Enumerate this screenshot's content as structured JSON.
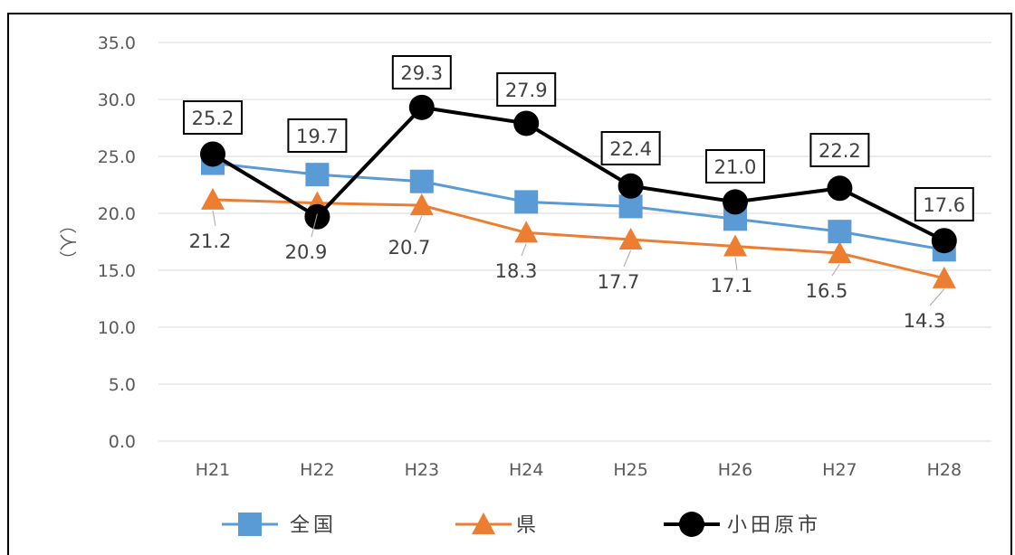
{
  "chart_data": {
    "type": "line",
    "categories": [
      "H21",
      "H22",
      "H23",
      "H24",
      "H25",
      "H26",
      "H27",
      "H28"
    ],
    "series": [
      {
        "name": "全国",
        "color": "#5B9BD5",
        "marker": "square",
        "values": [
          24.4,
          23.4,
          22.8,
          21.0,
          20.6,
          19.5,
          18.4,
          16.8
        ]
      },
      {
        "name": "県",
        "color": "#ED7D31",
        "marker": "triangle",
        "values": [
          21.2,
          20.9,
          20.7,
          18.3,
          17.7,
          17.1,
          16.5,
          14.3
        ]
      },
      {
        "name": "小田原市",
        "color": "#000000",
        "marker": "circle",
        "values": [
          25.2,
          19.7,
          29.3,
          27.9,
          22.4,
          21.0,
          22.2,
          17.6
        ]
      }
    ],
    "data_labels": {
      "県": [
        "21.2",
        "20.9",
        "20.7",
        "18.3",
        "17.7",
        "17.1",
        "16.5",
        "14.3"
      ],
      "小田原市": [
        "25.2",
        "19.7",
        "29.3",
        "27.9",
        "22.4",
        "21.0",
        "22.2",
        "17.6"
      ]
    },
    "ylabel": "（人）",
    "y_ticks": [
      "0.0",
      "5.0",
      "10.0",
      "15.0",
      "20.0",
      "25.0",
      "30.0",
      "35.0"
    ],
    "ylim": [
      0,
      35
    ],
    "grid": true,
    "legend_position": "bottom"
  }
}
